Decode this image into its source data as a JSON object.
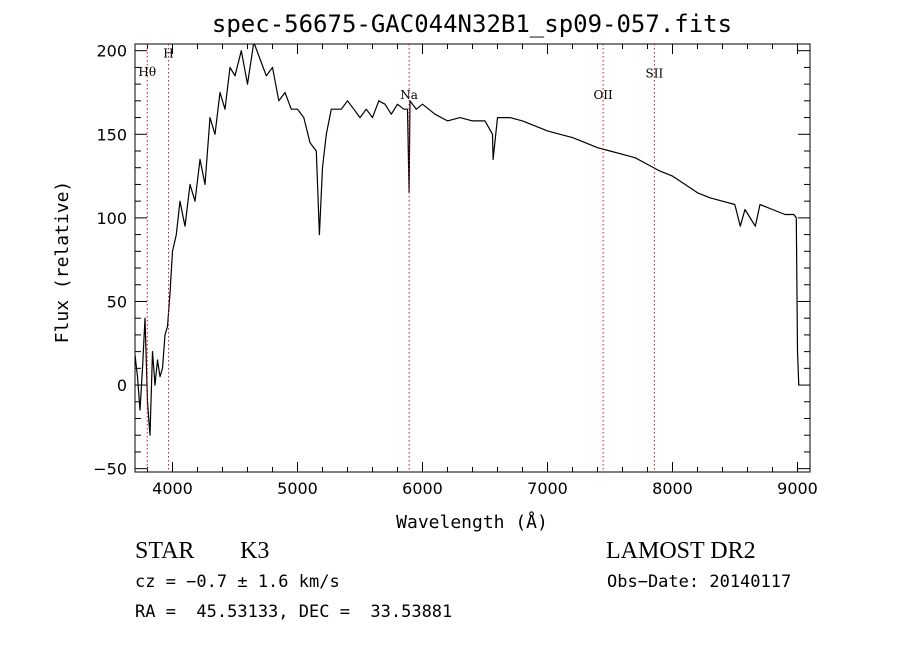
{
  "chart_data": {
    "type": "line",
    "title": "spec-56675-GAC044N32B1_sp09-057.fits",
    "xlabel": "Wavelength (Å)",
    "ylabel": "Flux (relative)",
    "xlim": [
      3700,
      9100
    ],
    "ylim": [
      -52,
      204
    ],
    "xticks": [
      4000,
      5000,
      6000,
      7000,
      8000,
      9000
    ],
    "yticks": [
      -50,
      0,
      50,
      100,
      150,
      200
    ],
    "xtick_labels": [
      "4000",
      "5000",
      "6000",
      "7000",
      "8000",
      "9000"
    ],
    "ytick_labels": [
      "−50",
      "0",
      "50",
      "100",
      "150",
      "200"
    ],
    "grid": false,
    "legend": "none",
    "series": [
      {
        "values_x": [
          3700,
          3720,
          3740,
          3760,
          3780,
          3800,
          3820,
          3840,
          3860,
          3880,
          3900,
          3920,
          3940,
          3960,
          3980,
          4000,
          4030,
          4060,
          4100,
          4140,
          4180,
          4220,
          4260,
          4300,
          4340,
          4380,
          4420,
          4460,
          4500,
          4550,
          4600,
          4650,
          4700,
          4750,
          4800,
          4850,
          4900,
          4950,
          5000,
          5050,
          5100,
          5150,
          5175,
          5200,
          5230,
          5270,
          5300,
          5350,
          5400,
          5450,
          5500,
          5550,
          5600,
          5650,
          5700,
          5750,
          5800,
          5850,
          5880,
          5893,
          5900,
          5920,
          5950,
          6000,
          6100,
          6200,
          6300,
          6400,
          6500,
          6560,
          6565,
          6600,
          6700,
          6800,
          6900,
          7000,
          7100,
          7200,
          7300,
          7400,
          7500,
          7600,
          7700,
          7800,
          7900,
          8000,
          8100,
          8200,
          8300,
          8400,
          8498,
          8542,
          8580,
          8662,
          8700,
          8800,
          8900,
          8970,
          8990,
          9000,
          9010
        ],
        "values_y": [
          18,
          5,
          -15,
          10,
          40,
          -10,
          -30,
          20,
          0,
          15,
          5,
          10,
          30,
          35,
          55,
          80,
          90,
          110,
          95,
          120,
          110,
          135,
          120,
          160,
          150,
          175,
          165,
          190,
          185,
          200,
          180,
          205,
          195,
          185,
          190,
          170,
          175,
          165,
          165,
          160,
          145,
          140,
          90,
          130,
          150,
          165,
          165,
          165,
          170,
          165,
          160,
          165,
          160,
          170,
          168,
          162,
          168,
          165,
          165,
          115,
          170,
          168,
          165,
          168,
          162,
          158,
          160,
          158,
          158,
          150,
          135,
          160,
          160,
          158,
          155,
          152,
          150,
          148,
          145,
          142,
          140,
          138,
          136,
          132,
          128,
          125,
          120,
          115,
          112,
          110,
          108,
          95,
          105,
          95,
          108,
          105,
          102,
          102,
          100,
          20,
          0
        ]
      }
    ],
    "spectral_lines": [
      {
        "label": "Hθ",
        "x": 3798,
        "label_y": 185
      },
      {
        "label": "H",
        "x": 3968,
        "label_y": 196
      },
      {
        "label": "Na",
        "x": 5893,
        "label_y": 171
      },
      {
        "label": "OII",
        "x": 7445,
        "label_y": 171
      },
      {
        "label": "SII",
        "x": 7855,
        "label_y": 184
      }
    ]
  },
  "info": {
    "class": "STAR",
    "subclass": "K3",
    "survey": "LAMOST DR2",
    "cz": "cz = −0.7 ± 1.6 km/s",
    "obs_date": "Obs−Date: 20140117",
    "radec": "RA =  45.53133, DEC =  33.53881"
  },
  "colors": {
    "line": "#000000",
    "marker": "#c81e1e"
  }
}
